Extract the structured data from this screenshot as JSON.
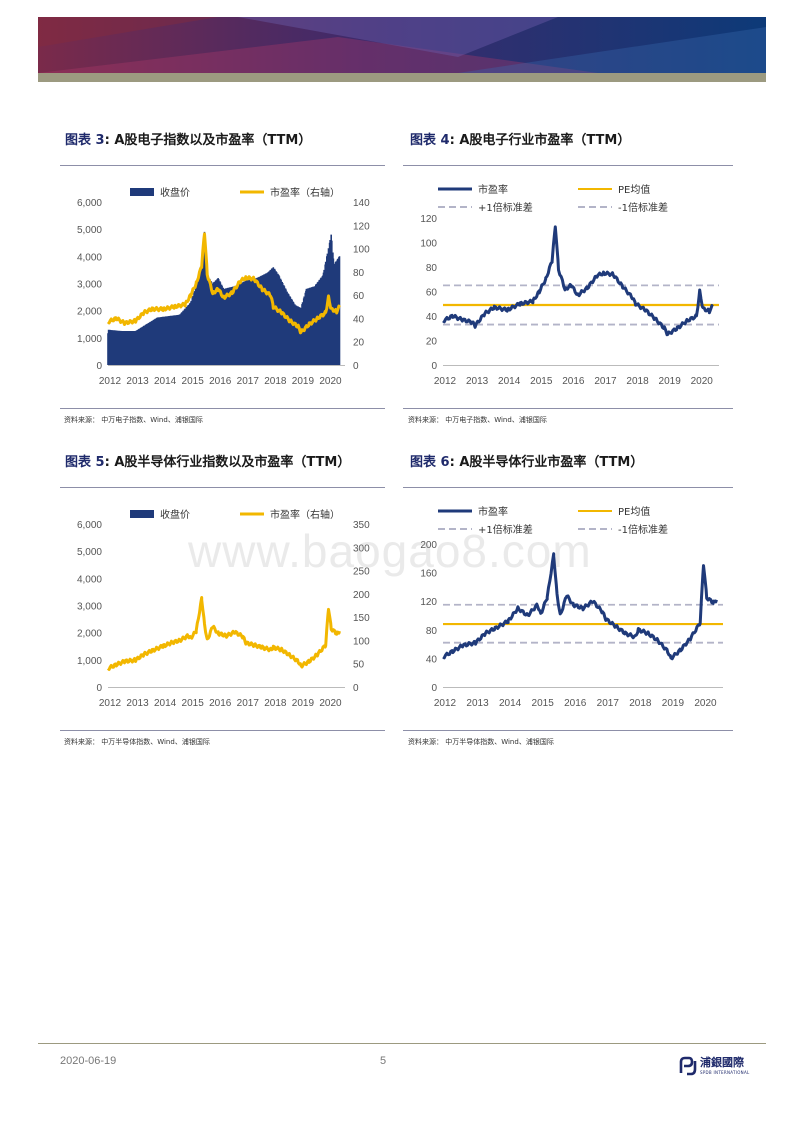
{
  "charts": [
    {
      "caption_label": "图表",
      "caption_num": "3",
      "caption_text": ": A股电子指数以及市盈率（TTM）",
      "source": "资料来源：  中万电子指数、Wind、浦银国际",
      "chart_data": {
        "type": "bar+line",
        "x_ticks": [
          "2012",
          "2013",
          "2014",
          "2015",
          "2016",
          "2017",
          "2018",
          "2019",
          "2020"
        ],
        "y_left": {
          "lim": [
            0,
            6000
          ],
          "ticks": [
            "0",
            "1,000",
            "2,000",
            "3,000",
            "4,000",
            "5,000",
            "6,000"
          ]
        },
        "y_right": {
          "lim": [
            0,
            140
          ],
          "ticks": [
            "0",
            "20",
            "40",
            "60",
            "80",
            "100",
            "120",
            "140"
          ]
        },
        "series": [
          {
            "name": "收盘价",
            "kind": "bar",
            "axis": "left",
            "color": "#1f3a7a",
            "points": [
              [
                2012.0,
                1300
              ],
              [
                2012.5,
                1250
              ],
              [
                2013.0,
                1250
              ],
              [
                2013.4,
                1500
              ],
              [
                2013.8,
                1750
              ],
              [
                2014.2,
                1800
              ],
              [
                2014.6,
                1850
              ],
              [
                2015.0,
                2300
              ],
              [
                2015.2,
                2900
              ],
              [
                2015.4,
                3800
              ],
              [
                2015.5,
                4900
              ],
              [
                2015.6,
                3300
              ],
              [
                2015.8,
                3000
              ],
              [
                2016.0,
                3200
              ],
              [
                2016.2,
                2800
              ],
              [
                2016.6,
                2900
              ],
              [
                2017.0,
                3100
              ],
              [
                2017.4,
                3200
              ],
              [
                2017.8,
                3400
              ],
              [
                2018.0,
                3600
              ],
              [
                2018.2,
                3300
              ],
              [
                2018.5,
                2700
              ],
              [
                2018.8,
                2200
              ],
              [
                2019.0,
                2100
              ],
              [
                2019.2,
                2800
              ],
              [
                2019.5,
                2900
              ],
              [
                2019.8,
                3300
              ],
              [
                2020.0,
                4300
              ],
              [
                2020.1,
                4800
              ],
              [
                2020.2,
                3700
              ],
              [
                2020.4,
                4000
              ]
            ]
          },
          {
            "name": "市盈率（右轴）",
            "kind": "line",
            "axis": "right",
            "color": "#f2b700",
            "points": [
              [
                2012.0,
                37
              ],
              [
                2012.3,
                40
              ],
              [
                2012.6,
                36
              ],
              [
                2013.0,
                38
              ],
              [
                2013.3,
                45
              ],
              [
                2013.6,
                48
              ],
              [
                2014.0,
                48
              ],
              [
                2014.4,
                50
              ],
              [
                2014.8,
                52
              ],
              [
                2015.0,
                60
              ],
              [
                2015.2,
                70
              ],
              [
                2015.4,
                85
              ],
              [
                2015.5,
                114
              ],
              [
                2015.6,
                78
              ],
              [
                2015.8,
                62
              ],
              [
                2016.0,
                65
              ],
              [
                2016.2,
                58
              ],
              [
                2016.5,
                62
              ],
              [
                2016.8,
                72
              ],
              [
                2017.0,
                75
              ],
              [
                2017.3,
                74
              ],
              [
                2017.6,
                65
              ],
              [
                2017.9,
                60
              ],
              [
                2018.0,
                50
              ],
              [
                2018.3,
                45
              ],
              [
                2018.6,
                38
              ],
              [
                2018.9,
                33
              ],
              [
                2019.0,
                28
              ],
              [
                2019.3,
                35
              ],
              [
                2019.6,
                40
              ],
              [
                2019.9,
                45
              ],
              [
                2020.0,
                58
              ],
              [
                2020.1,
                48
              ],
              [
                2020.3,
                46
              ],
              [
                2020.4,
                50
              ]
            ]
          }
        ],
        "legend": "top"
      }
    },
    {
      "caption_label": "图表",
      "caption_num": "4",
      "caption_text": ": A股电子行业市盈率（TTM）",
      "source": "资料来源：  中万电子指数、Wind、浦银国际",
      "chart_data": {
        "type": "line",
        "x_ticks": [
          "2012",
          "2013",
          "2014",
          "2015",
          "2016",
          "2017",
          "2018",
          "2019",
          "2020"
        ],
        "y_left": {
          "lim": [
            0,
            120
          ],
          "ticks": [
            "0",
            "20",
            "40",
            "60",
            "80",
            "100",
            "120"
          ]
        },
        "series": [
          {
            "name": "市盈率",
            "kind": "line",
            "color": "#1f3a7a",
            "points": [
              [
                2012.0,
                36
              ],
              [
                2012.3,
                40
              ],
              [
                2012.6,
                37
              ],
              [
                2012.9,
                35
              ],
              [
                2013.0,
                32
              ],
              [
                2013.3,
                42
              ],
              [
                2013.6,
                47
              ],
              [
                2014.0,
                45
              ],
              [
                2014.4,
                50
              ],
              [
                2014.8,
                52
              ],
              [
                2015.0,
                60
              ],
              [
                2015.2,
                70
              ],
              [
                2015.4,
                85
              ],
              [
                2015.5,
                114
              ],
              [
                2015.6,
                78
              ],
              [
                2015.8,
                62
              ],
              [
                2016.0,
                65
              ],
              [
                2016.2,
                57
              ],
              [
                2016.5,
                63
              ],
              [
                2016.8,
                73
              ],
              [
                2017.0,
                75
              ],
              [
                2017.3,
                74
              ],
              [
                2017.6,
                64
              ],
              [
                2017.9,
                55
              ],
              [
                2018.0,
                50
              ],
              [
                2018.3,
                45
              ],
              [
                2018.6,
                38
              ],
              [
                2018.9,
                30
              ],
              [
                2019.0,
                25
              ],
              [
                2019.3,
                30
              ],
              [
                2019.6,
                36
              ],
              [
                2019.9,
                40
              ],
              [
                2020.0,
                60
              ],
              [
                2020.1,
                46
              ],
              [
                2020.3,
                44
              ],
              [
                2020.4,
                48
              ]
            ]
          },
          {
            "name": "PE均值",
            "kind": "hline",
            "color": "#f2b700",
            "value": 49
          },
          {
            "name": "+1倍标准差",
            "kind": "hline-dash",
            "color": "#b3b4c8",
            "value": 65
          },
          {
            "name": "-1倍标准差",
            "kind": "hline-dash",
            "color": "#b3b4c8",
            "value": 33
          }
        ],
        "legend": "top"
      }
    },
    {
      "caption_label": "图表",
      "caption_num": "5",
      "caption_text": ": A股半导体行业指数以及市盈率（TTM）",
      "source": "资料来源：  中万半导体指数、Wind、浦银国际",
      "chart_data": {
        "type": "bar+line",
        "x_ticks": [
          "2012",
          "2013",
          "2014",
          "2015",
          "2016",
          "2017",
          "2018",
          "2019",
          "2020"
        ],
        "y_left": {
          "lim": [
            0,
            6000
          ],
          "ticks": [
            "0",
            "1,000",
            "2,000",
            "3,000",
            "4,000",
            "5,000",
            "6,000"
          ]
        },
        "y_right": {
          "lim": [
            0,
            350
          ],
          "ticks": [
            "0",
            "50",
            "100",
            "150",
            "200",
            "250",
            "300",
            "350"
          ]
        },
        "series": [
          {
            "name": "收盘价",
            "kind": "bar",
            "axis": "left",
            "color": "#1f3a7a",
            "points": []
          },
          {
            "name": "市盈率（右轴）",
            "kind": "line",
            "axis": "right",
            "color": "#f2b700",
            "points": [
              [
                2012.0,
                40
              ],
              [
                2012.3,
                48
              ],
              [
                2012.6,
                55
              ],
              [
                2013.0,
                58
              ],
              [
                2013.3,
                70
              ],
              [
                2013.6,
                78
              ],
              [
                2014.0,
                88
              ],
              [
                2014.3,
                95
              ],
              [
                2014.6,
                100
              ],
              [
                2014.9,
                110
              ],
              [
                2015.0,
                105
              ],
              [
                2015.2,
                120
              ],
              [
                2015.4,
                190
              ],
              [
                2015.5,
                135
              ],
              [
                2015.6,
                100
              ],
              [
                2015.8,
                130
              ],
              [
                2016.0,
                115
              ],
              [
                2016.3,
                110
              ],
              [
                2016.6,
                118
              ],
              [
                2016.9,
                108
              ],
              [
                2017.0,
                95
              ],
              [
                2017.3,
                90
              ],
              [
                2017.6,
                85
              ],
              [
                2017.9,
                80
              ],
              [
                2018.0,
                85
              ],
              [
                2018.3,
                80
              ],
              [
                2018.6,
                68
              ],
              [
                2018.9,
                55
              ],
              [
                2019.0,
                45
              ],
              [
                2019.3,
                55
              ],
              [
                2019.6,
                70
              ],
              [
                2019.9,
                90
              ],
              [
                2020.0,
                170
              ],
              [
                2020.1,
                125
              ],
              [
                2020.3,
                115
              ],
              [
                2020.4,
                120
              ]
            ]
          }
        ],
        "legend": "top"
      }
    },
    {
      "caption_label": "图表",
      "caption_num": "6",
      "caption_text": ": A股半导体行业市盈率（TTM）",
      "source": "资料来源：  中万半导体指数、Wind、浦银国际",
      "chart_data": {
        "type": "line",
        "x_ticks": [
          "2012",
          "2013",
          "2014",
          "2015",
          "2016",
          "2017",
          "2018",
          "2019",
          "2020"
        ],
        "y_left": {
          "lim": [
            0,
            200
          ],
          "ticks": [
            "0",
            "40",
            "80",
            "120",
            "160",
            "200"
          ]
        },
        "series": [
          {
            "name": "市盈率",
            "kind": "line",
            "color": "#1f3a7a",
            "points": [
              [
                2012.0,
                42
              ],
              [
                2012.3,
                50
              ],
              [
                2012.6,
                58
              ],
              [
                2013.0,
                62
              ],
              [
                2013.3,
                75
              ],
              [
                2013.6,
                82
              ],
              [
                2014.0,
                92
              ],
              [
                2014.3,
                110
              ],
              [
                2014.6,
                100
              ],
              [
                2014.9,
                115
              ],
              [
                2015.0,
                102
              ],
              [
                2015.2,
                125
              ],
              [
                2015.4,
                185
              ],
              [
                2015.5,
                130
              ],
              [
                2015.6,
                100
              ],
              [
                2015.8,
                128
              ],
              [
                2016.0,
                115
              ],
              [
                2016.3,
                110
              ],
              [
                2016.6,
                120
              ],
              [
                2016.9,
                105
              ],
              [
                2017.0,
                95
              ],
              [
                2017.3,
                85
              ],
              [
                2017.6,
                75
              ],
              [
                2017.9,
                70
              ],
              [
                2018.0,
                80
              ],
              [
                2018.3,
                75
              ],
              [
                2018.6,
                65
              ],
              [
                2018.9,
                50
              ],
              [
                2019.0,
                40
              ],
              [
                2019.3,
                52
              ],
              [
                2019.6,
                68
              ],
              [
                2019.9,
                90
              ],
              [
                2020.0,
                172
              ],
              [
                2020.1,
                125
              ],
              [
                2020.3,
                118
              ],
              [
                2020.4,
                122
              ]
            ]
          },
          {
            "name": "PE均值",
            "kind": "hline",
            "color": "#f2b700",
            "value": 88
          },
          {
            "name": "+1倍标准差",
            "kind": "hline-dash",
            "color": "#b3b4c8",
            "value": 115
          },
          {
            "name": "-1倍标准差",
            "kind": "hline-dash",
            "color": "#b3b4c8",
            "value": 62
          }
        ],
        "legend": "top"
      }
    }
  ],
  "watermark": "www.baogao8.com",
  "footer": {
    "date": "2020-06-19",
    "page": "5",
    "logo_cn": "浦銀國際",
    "logo_en": "SPDB INTERNATIONAL"
  }
}
